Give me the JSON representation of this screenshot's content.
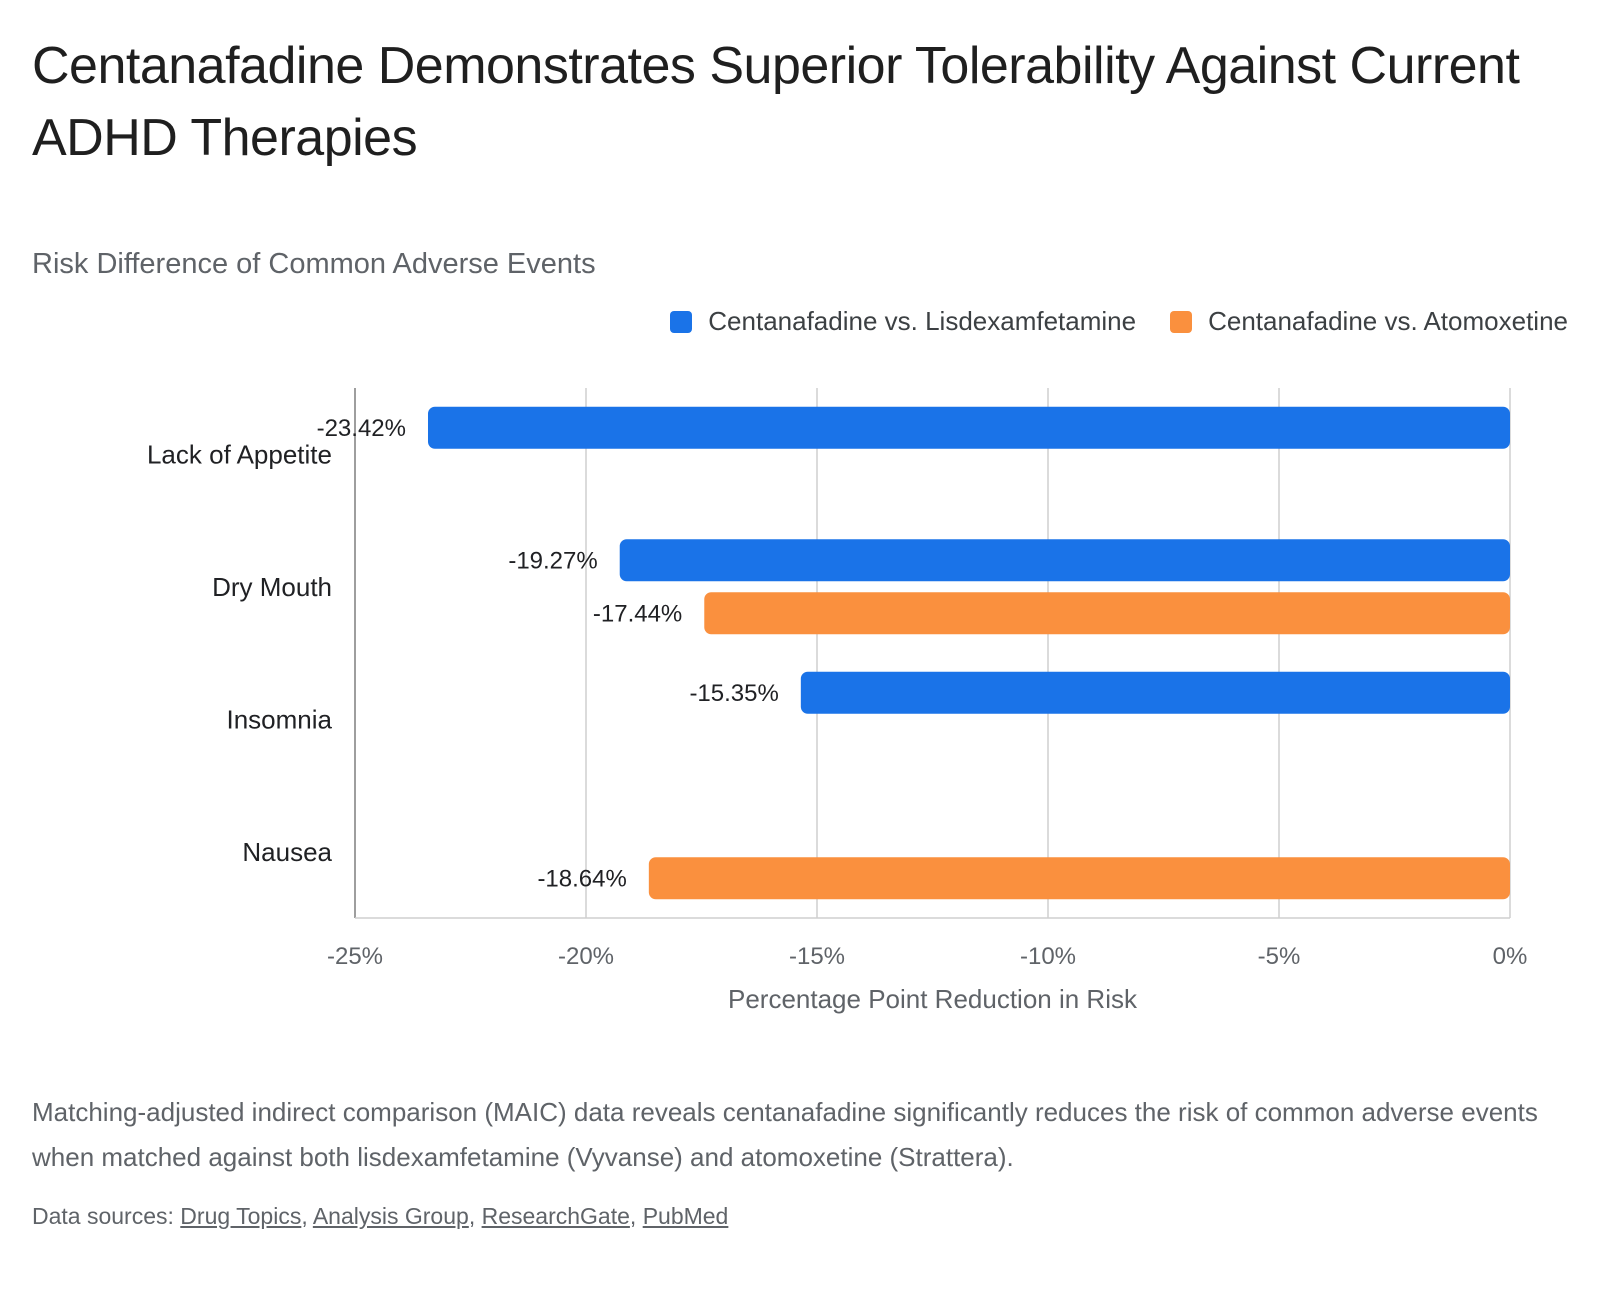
{
  "page": {
    "title": "Centanafadine Demonstrates Superior Tolerability Against Current ADHD Therapies",
    "description": "Matching-adjusted indirect comparison (MAIC) data reveals centanafadine significantly reduces the risk of common adverse events when matched against both lisdexamfetamine (Vyvanse) and atomoxetine (Strattera).",
    "sources_label": "Data sources:",
    "sources": [
      "Drug Topics",
      "Analysis Group",
      "ResearchGate",
      "PubMed"
    ]
  },
  "chart_data": {
    "type": "bar",
    "orientation": "horizontal",
    "title": "Risk Difference of Common Adverse Events",
    "xlabel": "Percentage Point Reduction in Risk",
    "ylabel": "",
    "categories": [
      "Lack of Appetite",
      "Dry Mouth",
      "Insomnia",
      "Nausea"
    ],
    "series": [
      {
        "name": "Centanafadine vs. Lisdexamfetamine",
        "color": "#1a73e8",
        "values": [
          -23.42,
          -19.27,
          -15.35,
          null
        ]
      },
      {
        "name": "Centanafadine vs. Atomoxetine",
        "color": "#fa903e",
        "values": [
          null,
          -17.44,
          null,
          -18.64
        ]
      }
    ],
    "xlim": [
      -25,
      0
    ],
    "xticks": [
      -25,
      -20,
      -15,
      -10,
      -5,
      0
    ],
    "tick_labels": [
      "-25%",
      "-20%",
      "-15%",
      "-10%",
      "-5%",
      "0%"
    ],
    "grid": true,
    "legend_position": "top-right"
  }
}
